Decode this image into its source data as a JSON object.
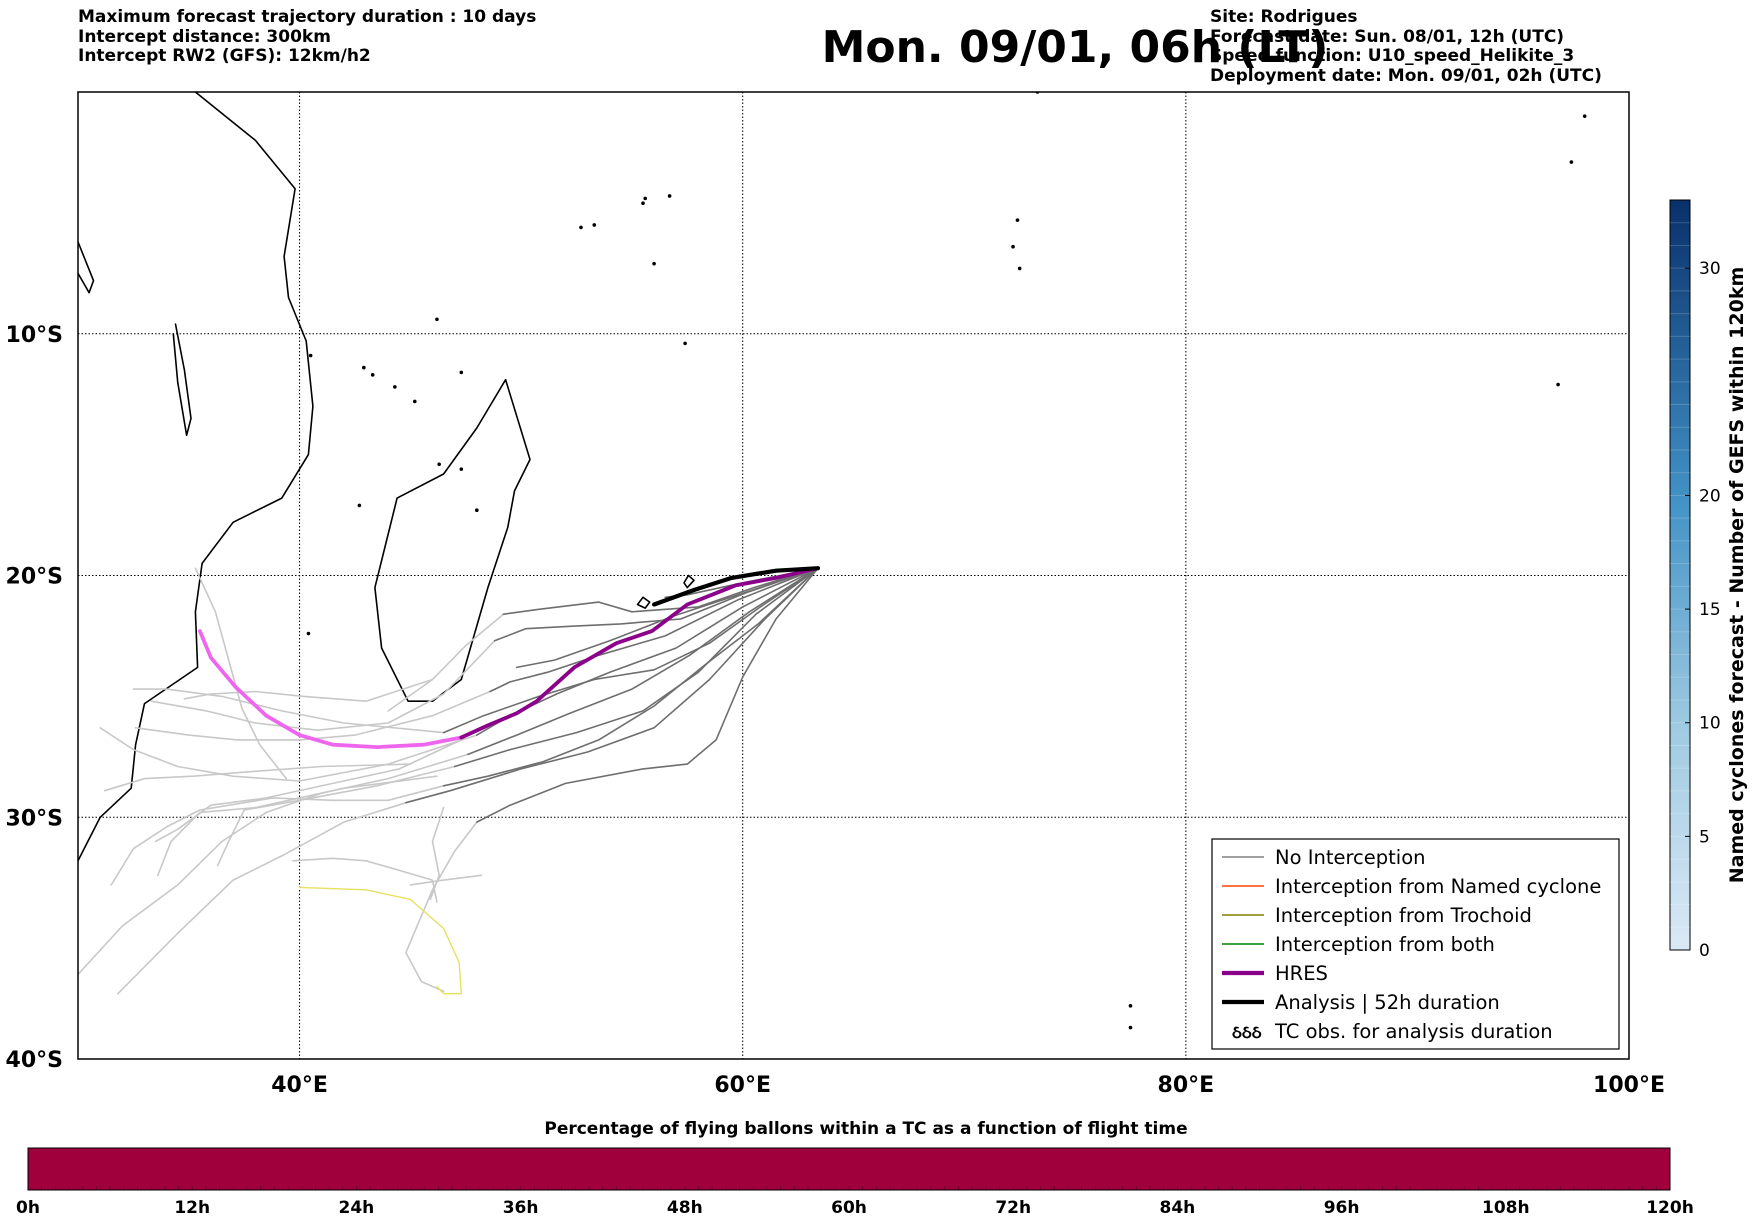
{
  "header": {
    "left": [
      "Maximum forecast trajectory duration : 10 days",
      "Intercept distance: 300km",
      "Intercept RW2 (GFS):  12km/h2"
    ],
    "title": "Mon. 09/01, 06h (LT)",
    "right": [
      "Site: Rodrigues",
      "Forecast date: Sun. 08/01, 12h (UTC)",
      "Speed function: U10_speed_Helikite_3",
      "Deployment date: Mon. 09/01, 02h (UTC)"
    ]
  },
  "map": {
    "lon_range": [
      30,
      100
    ],
    "lat_range": [
      -40,
      0
    ],
    "lon_ticks": [
      {
        "value": 40,
        "label": "40°E"
      },
      {
        "value": 60,
        "label": "60°E"
      },
      {
        "value": 80,
        "label": "80°E"
      },
      {
        "value": 100,
        "label": "100°E"
      }
    ],
    "lat_ticks": [
      {
        "value": -10,
        "label": "10°S"
      },
      {
        "value": -20,
        "label": "20°S"
      },
      {
        "value": -30,
        "label": "30°S"
      },
      {
        "value": -40,
        "label": "40°S"
      }
    ],
    "launch_site": {
      "lon": 63.4,
      "lat": -19.7
    },
    "coastlines": {
      "africa": [
        [
          35.3,
          0
        ],
        [
          38,
          -2
        ],
        [
          39.8,
          -4
        ],
        [
          39.3,
          -6.8
        ],
        [
          39.5,
          -8.5
        ],
        [
          40.3,
          -10.3
        ],
        [
          40.6,
          -13
        ],
        [
          40.4,
          -15
        ],
        [
          39.2,
          -16.8
        ],
        [
          37,
          -17.8
        ],
        [
          35.6,
          -19.5
        ],
        [
          35.3,
          -21.5
        ],
        [
          35.4,
          -23.8
        ],
        [
          33,
          -25.3
        ],
        [
          32.6,
          -27
        ],
        [
          32.4,
          -28.8
        ],
        [
          31,
          -30
        ],
        [
          30,
          -31.8
        ]
      ],
      "madagascar": [
        [
          49.3,
          -11.9
        ],
        [
          50.4,
          -15.2
        ],
        [
          49.7,
          -16.5
        ],
        [
          49.4,
          -18
        ],
        [
          48.5,
          -20.5
        ],
        [
          47.3,
          -24.3
        ],
        [
          46,
          -25.2
        ],
        [
          44.9,
          -25.2
        ],
        [
          43.7,
          -23
        ],
        [
          43.4,
          -20.5
        ],
        [
          44.4,
          -16.8
        ],
        [
          46.5,
          -15.8
        ],
        [
          48,
          -13.9
        ],
        [
          49.3,
          -11.9
        ]
      ],
      "mauritius": [
        [
          57.55,
          -20.0
        ],
        [
          57.8,
          -20.2
        ],
        [
          57.5,
          -20.5
        ],
        [
          57.35,
          -20.3
        ],
        [
          57.55,
          -20.0
        ]
      ],
      "reunion": [
        [
          55.5,
          -20.9
        ],
        [
          55.8,
          -21.1
        ],
        [
          55.6,
          -21.35
        ],
        [
          55.25,
          -21.2
        ],
        [
          55.5,
          -20.9
        ]
      ],
      "lake_tanganyika": [
        [
          30,
          -6.2
        ],
        [
          30.7,
          -7.8
        ],
        [
          30.5,
          -8.3
        ],
        [
          30,
          -7.5
        ]
      ],
      "lake_malawi": [
        [
          34.4,
          -9.6
        ],
        [
          34.8,
          -11.5
        ],
        [
          35.1,
          -13.5
        ],
        [
          34.9,
          -14.2
        ],
        [
          34.5,
          -12
        ],
        [
          34.3,
          -10
        ]
      ]
    },
    "islets": [
      [
        55.5,
        -4.6
      ],
      [
        55.6,
        -4.4
      ],
      [
        56.7,
        -4.3
      ],
      [
        53.3,
        -5.5
      ],
      [
        52.7,
        -5.6
      ],
      [
        56,
        -7.1
      ],
      [
        72.4,
        -5.3
      ],
      [
        72.2,
        -6.4
      ],
      [
        72.5,
        -7.3
      ],
      [
        43.3,
        -11.7
      ],
      [
        44.3,
        -12.2
      ],
      [
        45.2,
        -12.8
      ],
      [
        47.3,
        -11.6
      ],
      [
        46.2,
        -9.4
      ],
      [
        40.5,
        -10.9
      ],
      [
        57.4,
        -10.4
      ],
      [
        63.4,
        -19.7
      ],
      [
        47.3,
        -15.6
      ],
      [
        48,
        -17.3
      ],
      [
        42.7,
        -17.1
      ],
      [
        40.4,
        -22.4
      ],
      [
        46.3,
        -15.4
      ],
      [
        73.3,
        0
      ],
      [
        96.8,
        -12.1
      ],
      [
        97.4,
        -2.9
      ],
      [
        98,
        -1
      ],
      [
        77.5,
        -37.8
      ],
      [
        77.5,
        -38.7
      ],
      [
        42.9,
        -11.4
      ]
    ],
    "hres_dark": [
      [
        63.4,
        -19.7
      ],
      [
        61.5,
        -20.1
      ],
      [
        59.7,
        -20.4
      ],
      [
        57.5,
        -21.2
      ],
      [
        55.9,
        -22.3
      ],
      [
        54.3,
        -22.8
      ],
      [
        52.4,
        -23.8
      ],
      [
        50.7,
        -25.2
      ],
      [
        49.8,
        -25.7
      ],
      [
        48.5,
        -26.2
      ],
      [
        47.3,
        -26.7
      ]
    ],
    "hres_light": [
      [
        47.3,
        -26.7
      ],
      [
        45.6,
        -27
      ],
      [
        43.5,
        -27.1
      ],
      [
        41.5,
        -27
      ],
      [
        40,
        -26.6
      ],
      [
        38.5,
        -25.8
      ],
      [
        37.1,
        -24.6
      ],
      [
        36,
        -23.4
      ],
      [
        35.5,
        -22.3
      ]
    ],
    "analysis": [
      [
        63.4,
        -19.7
      ],
      [
        61.5,
        -19.8
      ],
      [
        59.5,
        -20.1
      ],
      [
        57.8,
        -20.6
      ],
      [
        56,
        -21.2
      ]
    ],
    "trajectories_dark": [
      [
        [
          63.4,
          -19.7
        ],
        [
          60,
          -20.3
        ],
        [
          57.5,
          -20.8
        ],
        [
          56.5,
          -20.9
        ]
      ],
      [
        [
          63.4,
          -19.7
        ],
        [
          60.5,
          -20.5
        ],
        [
          58,
          -21.3
        ],
        [
          55,
          -21.5
        ],
        [
          53.5,
          -21.1
        ],
        [
          50.8,
          -21.4
        ],
        [
          49.2,
          -21.6
        ]
      ],
      [
        [
          63.4,
          -19.7
        ],
        [
          60.2,
          -20.7
        ],
        [
          57.2,
          -21.8
        ],
        [
          54.5,
          -22.0
        ],
        [
          52.2,
          -22.1
        ],
        [
          50.2,
          -22.2
        ],
        [
          48.8,
          -22.7
        ]
      ],
      [
        [
          63.4,
          -19.7
        ],
        [
          59.8,
          -21.0
        ],
        [
          56.5,
          -22.5
        ],
        [
          53.5,
          -23.3
        ],
        [
          51.2,
          -24.0
        ],
        [
          49.5,
          -24.4
        ],
        [
          48.6,
          -24.8
        ]
      ],
      [
        [
          63.4,
          -19.7
        ],
        [
          60,
          -21.3
        ],
        [
          57,
          -23.0
        ],
        [
          54,
          -24.0
        ],
        [
          51.6,
          -24.9
        ],
        [
          49.5,
          -25.8
        ],
        [
          48,
          -26.6
        ]
      ],
      [
        [
          63.4,
          -19.7
        ],
        [
          60.3,
          -21.5
        ],
        [
          57.6,
          -23.3
        ],
        [
          55,
          -24.7
        ],
        [
          52.2,
          -25.7
        ],
        [
          49.8,
          -26.6
        ],
        [
          47.6,
          -27.4
        ]
      ],
      [
        [
          63.4,
          -19.7
        ],
        [
          60.6,
          -21.6
        ],
        [
          58,
          -24.0
        ],
        [
          55.5,
          -25.6
        ],
        [
          52.5,
          -26.5
        ],
        [
          49.5,
          -27.2
        ],
        [
          47,
          -27.9
        ]
      ],
      [
        [
          63.4,
          -19.7
        ],
        [
          61,
          -21.8
        ],
        [
          58.5,
          -24.3
        ],
        [
          56,
          -26.3
        ],
        [
          53,
          -27.3
        ],
        [
          50,
          -28.0
        ],
        [
          46.8,
          -28.9
        ],
        [
          44.8,
          -29.4
        ]
      ],
      [
        [
          63.4,
          -19.7
        ],
        [
          61.5,
          -21.8
        ],
        [
          60,
          -24.2
        ],
        [
          58.8,
          -26.8
        ],
        [
          57.5,
          -27.8
        ],
        [
          55.5,
          -28.0
        ],
        [
          52,
          -28.6
        ],
        [
          49.5,
          -29.5
        ],
        [
          48,
          -30.2
        ]
      ],
      [
        [
          63.4,
          -19.7
        ],
        [
          60.8,
          -21.3
        ],
        [
          58.5,
          -22.8
        ],
        [
          56,
          -23.9
        ],
        [
          53.3,
          -24.3
        ],
        [
          50.8,
          -25.0
        ],
        [
          48.3,
          -25.8
        ],
        [
          46.5,
          -26.5
        ]
      ],
      [
        [
          63.4,
          -19.7
        ],
        [
          59.8,
          -20.8
        ],
        [
          56.8,
          -21.7
        ],
        [
          54,
          -22.7
        ],
        [
          51.5,
          -23.5
        ],
        [
          49.8,
          -23.8
        ]
      ],
      [
        [
          63.4,
          -19.7
        ],
        [
          60.7,
          -22.0
        ],
        [
          58.3,
          -23.7
        ],
        [
          56,
          -25.4
        ],
        [
          53.5,
          -26.8
        ],
        [
          51,
          -27.7
        ],
        [
          48.5,
          -28.3
        ],
        [
          46.5,
          -28.7
        ]
      ]
    ],
    "trajectories_light": [
      [
        [
          47.3,
          -26.8
        ],
        [
          44.5,
          -28.0
        ],
        [
          41.5,
          -28.6
        ],
        [
          38.5,
          -29.2
        ],
        [
          36,
          -29.5
        ],
        [
          34.5,
          -30.5
        ],
        [
          33.5,
          -31
        ]
      ],
      [
        [
          48,
          -26.6
        ],
        [
          44,
          -27.8
        ],
        [
          40,
          -28.5
        ],
        [
          37,
          -28.3
        ],
        [
          34.5,
          -27.9
        ],
        [
          32.5,
          -27.2
        ],
        [
          31,
          -26.3
        ]
      ],
      [
        [
          47.6,
          -27.4
        ],
        [
          44,
          -28.4
        ],
        [
          41,
          -29.0
        ],
        [
          38.5,
          -29.8
        ],
        [
          36.5,
          -31.0
        ],
        [
          34.5,
          -32.8
        ],
        [
          32,
          -34.5
        ],
        [
          30,
          -36.5
        ]
      ],
      [
        [
          44.8,
          -29.4
        ],
        [
          42,
          -30.2
        ],
        [
          39.2,
          -31.6
        ],
        [
          37,
          -32.6
        ],
        [
          34.5,
          -34.8
        ],
        [
          31.8,
          -37.3
        ]
      ],
      [
        [
          48,
          -30.2
        ],
        [
          47,
          -31.4
        ],
        [
          46,
          -33.0
        ],
        [
          44.8,
          -35.6
        ],
        [
          45.5,
          -36.8
        ],
        [
          46.5,
          -37.2
        ]
      ],
      [
        [
          46.5,
          -26.5
        ],
        [
          42,
          -26.1
        ],
        [
          39.2,
          -25.6
        ],
        [
          36.5,
          -25.0
        ],
        [
          34,
          -24.7
        ],
        [
          32.5,
          -24.7
        ]
      ],
      [
        [
          46.5,
          -28.7
        ],
        [
          44,
          -29.3
        ],
        [
          41.5,
          -29.3
        ],
        [
          38.8,
          -29.2
        ],
        [
          35.5,
          -29.7
        ],
        [
          34,
          -30.4
        ],
        [
          32.5,
          -31.3
        ],
        [
          31.5,
          -32.8
        ]
      ],
      [
        [
          49.2,
          -21.6
        ],
        [
          47.5,
          -22.9
        ],
        [
          46,
          -24.3
        ],
        [
          44,
          -25.6
        ]
      ],
      [
        [
          48.8,
          -22.7
        ],
        [
          46.5,
          -24.9
        ],
        [
          44,
          -26.1
        ],
        [
          40.8,
          -26.4
        ],
        [
          38,
          -26.1
        ],
        [
          35.8,
          -25.6
        ],
        [
          33.3,
          -25.2
        ]
      ],
      [
        [
          48.6,
          -24.8
        ],
        [
          46,
          -25.8
        ],
        [
          42.5,
          -26.6
        ],
        [
          40,
          -26.8
        ],
        [
          37.2,
          -26.8
        ],
        [
          35,
          -26.6
        ],
        [
          32.6,
          -26.3
        ]
      ],
      [
        [
          45,
          -27.8
        ],
        [
          41,
          -27.9
        ],
        [
          38,
          -28.1
        ],
        [
          35.2,
          -28.3
        ],
        [
          33,
          -28.4
        ],
        [
          31.2,
          -28.9
        ]
      ],
      [
        [
          46.2,
          -28.3
        ],
        [
          42,
          -28.8
        ],
        [
          38,
          -29.6
        ],
        [
          35.5,
          -29.8
        ],
        [
          34.2,
          -31.0
        ],
        [
          33.6,
          -32.4
        ]
      ],
      [
        [
          47,
          -27.9
        ],
        [
          43.5,
          -28.7
        ],
        [
          40,
          -29.3
        ],
        [
          37.5,
          -29.7
        ],
        [
          36.8,
          -31.0
        ],
        [
          36.3,
          -32.0
        ]
      ],
      [
        [
          46,
          -24.3
        ],
        [
          43,
          -25.2
        ],
        [
          40.2,
          -25.0
        ],
        [
          38,
          -24.8
        ],
        [
          36,
          -24.9
        ],
        [
          34.8,
          -25.1
        ]
      ],
      [
        [
          35.3,
          -19.7
        ],
        [
          36.2,
          -21.5
        ],
        [
          36.8,
          -23.5
        ],
        [
          37.4,
          -25.5
        ],
        [
          38.2,
          -27.0
        ],
        [
          39.4,
          -28.4
        ]
      ],
      [
        [
          39.7,
          -31.8
        ],
        [
          41.5,
          -31.7
        ],
        [
          43,
          -31.8
        ],
        [
          44.5,
          -32.2
        ],
        [
          46,
          -32.6
        ],
        [
          46.2,
          -33.5
        ]
      ],
      [
        [
          45,
          -32.8
        ],
        [
          46.5,
          -32.6
        ],
        [
          48.2,
          -32.4
        ]
      ],
      [
        [
          46.5,
          -29.6
        ],
        [
          46,
          -31.0
        ],
        [
          46.3,
          -32.4
        ],
        [
          45.9,
          -33.4
        ]
      ]
    ],
    "yellow_track": [
      [
        40,
        -32.9
      ],
      [
        43,
        -33.0
      ],
      [
        45,
        -33.4
      ],
      [
        46.5,
        -34.6
      ],
      [
        47.2,
        -36.0
      ],
      [
        47.3,
        -37.3
      ],
      [
        46.5,
        -37.3
      ],
      [
        46.2,
        -37.0
      ]
    ],
    "legend": {
      "items": [
        {
          "label": "No Interception",
          "color": "#808080",
          "style": "thin"
        },
        {
          "label": "Interception from Named cyclone",
          "color": "#ff4500",
          "style": "thin"
        },
        {
          "label": "Interception from Trochoid",
          "color": "#808000",
          "style": "thin"
        },
        {
          "label": "Interception from both",
          "color": "#008000",
          "style": "thin"
        },
        {
          "label": "HRES",
          "color": "#8b008b",
          "style": "thick"
        },
        {
          "label": "Analysis | 52h duration",
          "color": "#000000",
          "style": "thick"
        },
        {
          "label": "TC obs. for analysis duration",
          "color": "#000000",
          "style": "tc-symbol"
        }
      ],
      "tc_symbol": "ઠઠઠ"
    }
  },
  "colorbar_right": {
    "label": "Named cyclones forecast - Number of GEFS within 120km",
    "range": [
      0,
      33
    ],
    "ticks": [
      0,
      5,
      10,
      15,
      20,
      30
    ],
    "color_low": "#dbe9f6",
    "color_high": "#08306b"
  },
  "colorbar_bottom": {
    "title": "Percentage of flying ballons within a TC as a function of flight time",
    "color": "#a0003c",
    "range_hours": [
      0,
      120
    ],
    "tick_labels": [
      "0h",
      "12h",
      "24h",
      "36h",
      "48h",
      "60h",
      "72h",
      "84h",
      "96h",
      "108h",
      "120h"
    ]
  }
}
